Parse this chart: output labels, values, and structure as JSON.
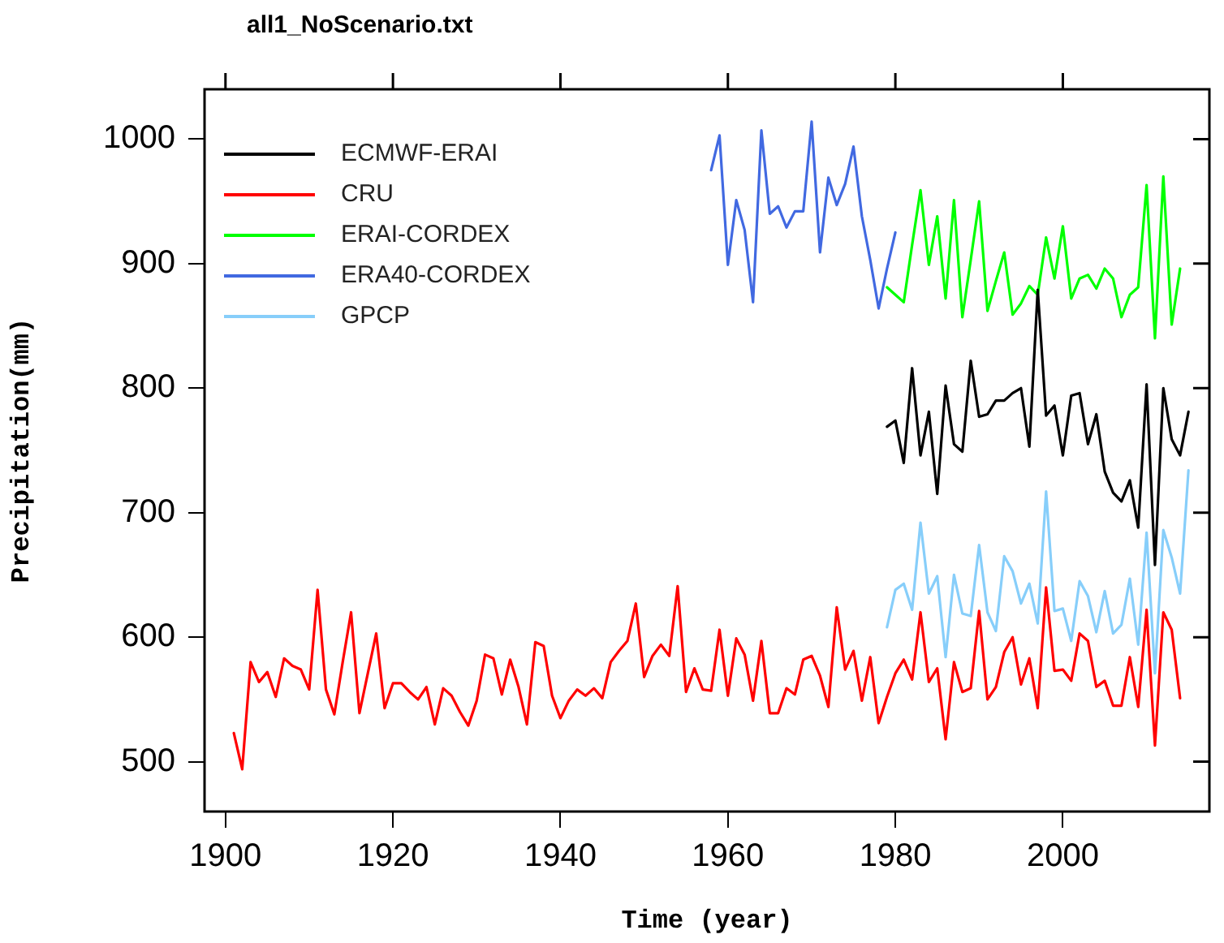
{
  "chart_data": {
    "type": "line",
    "title": "all1_NoScenario.txt",
    "xlabel": "Time (year)",
    "ylabel": "Precipitation(mm)",
    "xlim": [
      1897.5,
      2017.5
    ],
    "xticks": [
      1900,
      1920,
      1940,
      1960,
      1980,
      2000
    ],
    "ylim": [
      460,
      1040
    ],
    "yticks": [
      500,
      600,
      700,
      800,
      900,
      1000
    ],
    "grid": false,
    "legend": "top left",
    "line_style": "solid",
    "series": [
      {
        "name": "ECMWF-ERAI",
        "color": "#000000",
        "x": [
          1979,
          1980,
          1981,
          1982,
          1983,
          1984,
          1985,
          1986,
          1987,
          1988,
          1989,
          1990,
          1991,
          1992,
          1993,
          1994,
          1995,
          1996,
          1997,
          1998,
          1999,
          2000,
          2001,
          2002,
          2003,
          2004,
          2005,
          2006,
          2007,
          2008,
          2009,
          2010,
          2011,
          2012,
          2013,
          2014,
          2015
        ],
        "values": [
          769,
          774,
          740,
          816,
          746,
          781,
          715,
          802,
          755,
          749,
          822,
          777,
          779,
          790,
          790,
          796,
          800,
          753,
          879,
          778,
          786,
          746,
          794,
          796,
          755,
          779,
          733,
          716,
          709,
          726,
          688,
          803,
          658,
          800,
          759,
          746,
          781
        ]
      },
      {
        "name": "CRU",
        "color": "#ff0000",
        "x": [
          1901,
          1902,
          1903,
          1904,
          1905,
          1906,
          1907,
          1908,
          1909,
          1910,
          1911,
          1912,
          1913,
          1914,
          1915,
          1916,
          1917,
          1918,
          1919,
          1920,
          1921,
          1922,
          1923,
          1924,
          1925,
          1926,
          1927,
          1928,
          1929,
          1930,
          1931,
          1932,
          1933,
          1934,
          1935,
          1936,
          1937,
          1938,
          1939,
          1940,
          1941,
          1942,
          1943,
          1944,
          1945,
          1946,
          1947,
          1948,
          1949,
          1950,
          1951,
          1952,
          1953,
          1954,
          1955,
          1956,
          1957,
          1958,
          1959,
          1960,
          1961,
          1962,
          1963,
          1964,
          1965,
          1966,
          1967,
          1968,
          1969,
          1970,
          1971,
          1972,
          1973,
          1974,
          1975,
          1976,
          1977,
          1978,
          1979,
          1980,
          1981,
          1982,
          1983,
          1984,
          1985,
          1986,
          1987,
          1988,
          1989,
          1990,
          1991,
          1992,
          1993,
          1994,
          1995,
          1996,
          1997,
          1998,
          1999,
          2000,
          2001,
          2002,
          2003,
          2004,
          2005,
          2006,
          2007,
          2008,
          2009,
          2010,
          2011,
          2012,
          2013,
          2014
        ],
        "values": [
          523,
          494,
          580,
          564,
          572,
          552,
          583,
          577,
          574,
          558,
          638,
          558,
          538,
          580,
          620,
          539,
          571,
          603,
          543,
          563,
          563,
          556,
          550,
          560,
          530,
          559,
          553,
          540,
          529,
          549,
          586,
          583,
          554,
          582,
          560,
          530,
          596,
          593,
          553,
          535,
          549,
          558,
          553,
          559,
          551,
          580,
          589,
          597,
          627,
          568,
          585,
          594,
          585,
          641,
          556,
          575,
          558,
          557,
          606,
          553,
          599,
          586,
          549,
          597,
          539,
          539,
          559,
          554,
          582,
          585,
          569,
          544,
          624,
          574,
          589,
          549,
          584,
          531,
          552,
          571,
          582,
          566,
          620,
          564,
          575,
          518,
          580,
          556,
          559,
          621,
          550,
          560,
          588,
          600,
          562,
          583,
          543,
          640,
          573,
          574,
          565,
          603,
          597,
          560,
          565,
          545,
          545,
          584,
          544,
          622,
          513,
          620,
          606,
          551
        ]
      },
      {
        "name": "ERAI-CORDEX",
        "color": "#00ff00",
        "x": [
          1979,
          1980,
          1981,
          1982,
          1983,
          1984,
          1985,
          1986,
          1987,
          1988,
          1989,
          1990,
          1991,
          1992,
          1993,
          1994,
          1995,
          1996,
          1997,
          1998,
          1999,
          2000,
          2001,
          2002,
          2003,
          2004,
          2005,
          2006,
          2007,
          2008,
          2009,
          2010,
          2011,
          2012,
          2013,
          2014
        ],
        "values": [
          881,
          875,
          869,
          915,
          959,
          899,
          938,
          872,
          951,
          857,
          903,
          950,
          862,
          886,
          909,
          859,
          868,
          882,
          875,
          921,
          888,
          930,
          872,
          888,
          891,
          880,
          896,
          888,
          857,
          875,
          881,
          963,
          840,
          970,
          851,
          896
        ]
      },
      {
        "name": "ERA40-CORDEX",
        "color": "#4169e1",
        "x": [
          1958,
          1959,
          1960,
          1961,
          1962,
          1963,
          1964,
          1965,
          1966,
          1967,
          1968,
          1969,
          1970,
          1971,
          1972,
          1973,
          1974,
          1975,
          1976,
          1977,
          1978,
          1979,
          1980
        ],
        "values": [
          975,
          1003,
          899,
          951,
          927,
          869,
          1007,
          940,
          946,
          929,
          942,
          942,
          1014,
          909,
          969,
          947,
          964,
          994,
          938,
          903,
          864,
          896,
          925
        ]
      },
      {
        "name": "GPCP",
        "color": "#87cefa",
        "x": [
          1979,
          1980,
          1981,
          1982,
          1983,
          1984,
          1985,
          1986,
          1987,
          1988,
          1989,
          1990,
          1991,
          1992,
          1993,
          1994,
          1995,
          1996,
          1997,
          1998,
          1999,
          2000,
          2001,
          2002,
          2003,
          2004,
          2005,
          2006,
          2007,
          2008,
          2009,
          2010,
          2011,
          2012,
          2013,
          2014,
          2015
        ],
        "values": [
          608,
          638,
          643,
          622,
          692,
          635,
          649,
          584,
          650,
          619,
          617,
          674,
          620,
          605,
          665,
          653,
          627,
          643,
          611,
          717,
          621,
          623,
          597,
          645,
          633,
          604,
          637,
          603,
          610,
          647,
          594,
          684,
          571,
          686,
          664,
          635,
          734
        ]
      }
    ]
  }
}
